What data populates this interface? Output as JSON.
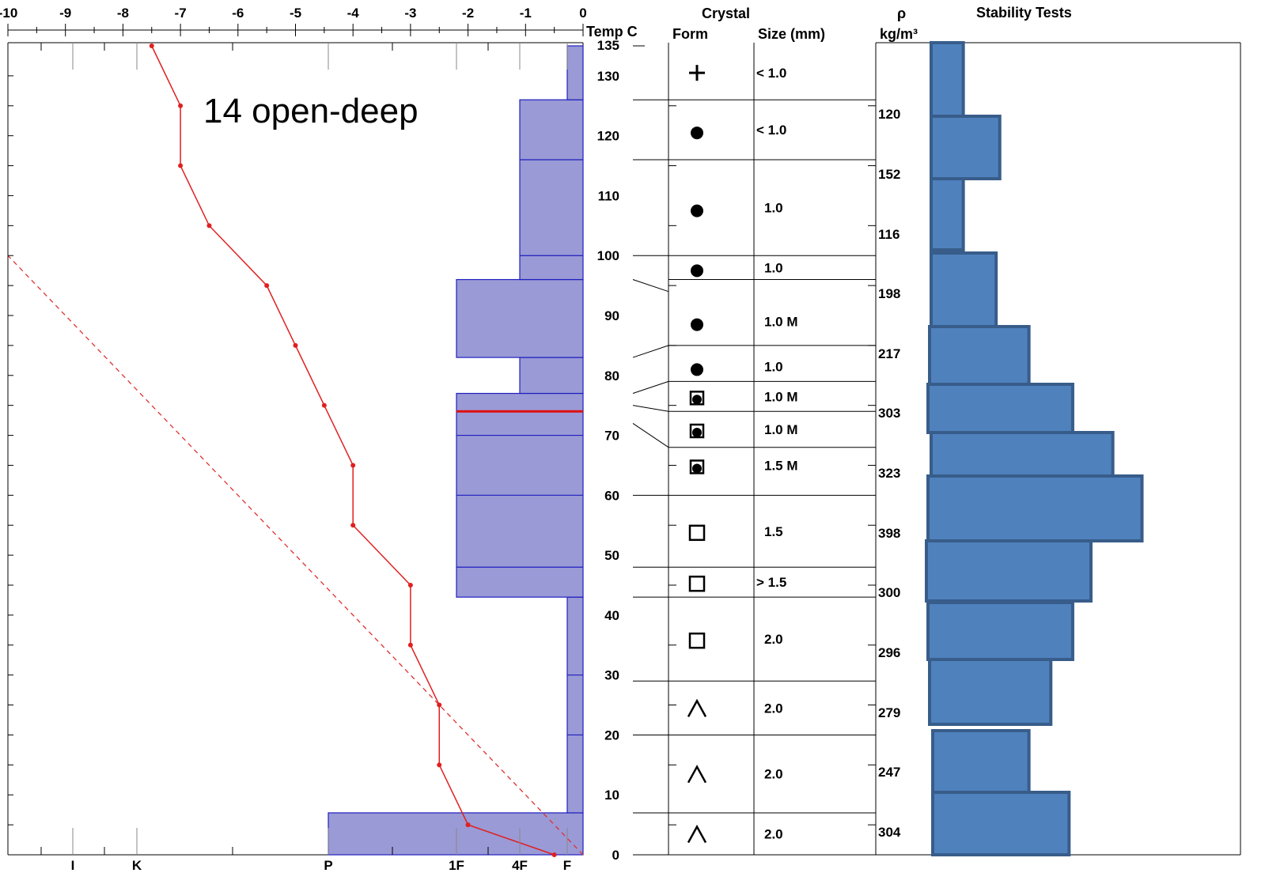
{
  "chart_data": {
    "type": "snow-profile",
    "annotation": "14 open-deep",
    "temperature_axis": {
      "label": "Temp C",
      "ticks": [
        "-10",
        "-9",
        "-8",
        "-7",
        "-6",
        "-5",
        "-4",
        "-3",
        "-2",
        "-1",
        "0"
      ],
      "range": [
        -10,
        0
      ]
    },
    "height_axis": {
      "ticks": [
        "0",
        "10",
        "20",
        "30",
        "40",
        "50",
        "60",
        "70",
        "80",
        "90",
        "100",
        "110",
        "120",
        "130",
        "135"
      ],
      "range": [
        0,
        135
      ]
    },
    "hardness_axis": {
      "ticks": [
        "I",
        "K",
        "P",
        "1F",
        "4F",
        "F"
      ]
    },
    "temperature_profile": [
      {
        "h": 0,
        "t": -0.5
      },
      {
        "h": 5,
        "t": -2.0
      },
      {
        "h": 15,
        "t": -2.5
      },
      {
        "h": 25,
        "t": -2.5
      },
      {
        "h": 35,
        "t": -3.0
      },
      {
        "h": 45,
        "t": -3.0
      },
      {
        "h": 55,
        "t": -4.0
      },
      {
        "h": 65,
        "t": -4.0
      },
      {
        "h": 75,
        "t": -4.5
      },
      {
        "h": 85,
        "t": -5.0
      },
      {
        "h": 95,
        "t": -5.5
      },
      {
        "h": 105,
        "t": -6.5
      },
      {
        "h": 115,
        "t": -7.0
      },
      {
        "h": 125,
        "t": -7.0
      },
      {
        "h": 135,
        "t": -7.5
      }
    ],
    "reference_line": {
      "style": "dashed",
      "from": {
        "h": 0,
        "t": 0
      },
      "to": {
        "h": 100,
        "t": -10
      }
    },
    "hardness_profile": [
      {
        "bottom": 0,
        "top": 7,
        "hardness": "P"
      },
      {
        "bottom": 7,
        "top": 43,
        "hardness": "F"
      },
      {
        "bottom": 43,
        "top": 77,
        "hardness": "1F"
      },
      {
        "bottom": 77,
        "top": 83,
        "hardness": "4F"
      },
      {
        "bottom": 83,
        "top": 96,
        "hardness": "1F"
      },
      {
        "bottom": 96,
        "top": 126,
        "hardness": "4F"
      },
      {
        "bottom": 126,
        "top": 135,
        "hardness": "F"
      }
    ],
    "weak_layer_height": 74,
    "crystal_header": {
      "title": "Crystal",
      "form": "Form",
      "size": "Size (mm)"
    },
    "density_header": {
      "symbol": "ρ",
      "unit": "kg/m³"
    },
    "stability_header": "Stability Tests",
    "layers": [
      {
        "form": "+",
        "size": "< 1.0"
      },
      {
        "form": "●",
        "size": "< 1.0"
      },
      {
        "form": "●",
        "size": "1.0"
      },
      {
        "form": "●",
        "size": "1.0"
      },
      {
        "form": "●",
        "size": "1.0 M"
      },
      {
        "form": "●",
        "size": "1.0"
      },
      {
        "form": "⊡",
        "size": "1.0 M"
      },
      {
        "form": "⊡",
        "size": "1.0 M"
      },
      {
        "form": "⊡",
        "size": "1.5 M"
      },
      {
        "form": "□",
        "size": "1.5"
      },
      {
        "form": "□",
        "size": "> 1.5"
      },
      {
        "form": "□",
        "size": "2.0"
      },
      {
        "form": "∧",
        "size": "2.0"
      },
      {
        "form": "∧",
        "size": "2.0"
      },
      {
        "form": "∧",
        "size": "2.0"
      }
    ],
    "densities": [
      "120",
      "152",
      "116",
      "198",
      "217",
      "303",
      "323",
      "398",
      "300",
      "296",
      "279",
      "247",
      "304"
    ],
    "stability_test_results": [
      0.24,
      0.34,
      0.24,
      0.33,
      0.42,
      0.54,
      0.65,
      0.73,
      0.59,
      0.54,
      0.48,
      0.42,
      0.53
    ]
  }
}
